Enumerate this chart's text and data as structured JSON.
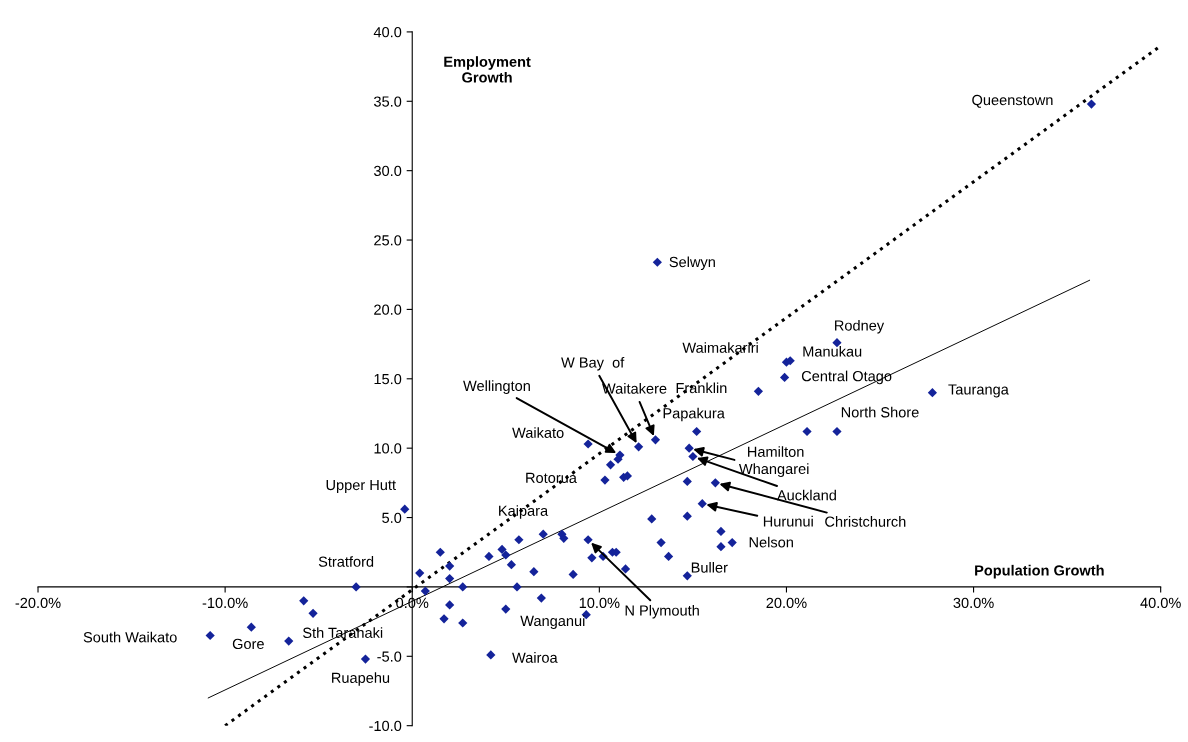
{
  "chart_data": {
    "type": "scatter",
    "xlabel": "Population Growth",
    "ylabel": "Employment Growth",
    "xlim": [
      -20,
      40
    ],
    "ylim": [
      -10,
      40
    ],
    "xticks": [
      {
        "value": -20,
        "label": "-20.0%"
      },
      {
        "value": -10,
        "label": "-10.0%"
      },
      {
        "value": 0,
        "label": "0.0%"
      },
      {
        "value": 10,
        "label": "10.0%"
      },
      {
        "value": 20,
        "label": "20.0%"
      },
      {
        "value": 30,
        "label": "30.0%"
      },
      {
        "value": 40,
        "label": "40.0%"
      }
    ],
    "yticks": [
      {
        "value": -10,
        "label": "-10.0"
      },
      {
        "value": -5,
        "label": "-5.0"
      },
      {
        "value": 0,
        "label": null
      },
      {
        "value": 5,
        "label": "5.0"
      },
      {
        "value": 10,
        "label": "10.0"
      },
      {
        "value": 15,
        "label": "15.0"
      },
      {
        "value": 20,
        "label": "20.0"
      },
      {
        "value": 25,
        "label": "25.0"
      },
      {
        "value": 30,
        "label": "30.0"
      },
      {
        "value": 35,
        "label": "35.0"
      },
      {
        "value": 40,
        "label": "40.0"
      }
    ],
    "marker": "diamond",
    "grid": false,
    "legend": false,
    "series": [
      {
        "color": "#14239a",
        "x": [
          36.3,
          13.1,
          22.7,
          20.0,
          20.2,
          19.9,
          18.5,
          27.8,
          22.7,
          21.1,
          15.2,
          14.8,
          15.0,
          16.2,
          14.7,
          15.5,
          12.8,
          14.7,
          16.5,
          16.5,
          17.1,
          13.3,
          13.7,
          14.7,
          11.4,
          9.4,
          9.6,
          10.2,
          10.7,
          10.9,
          8.6,
          8.0,
          8.1,
          7.0,
          5.7,
          4.8,
          5.0,
          5.3,
          4.1,
          6.5,
          1.5,
          2.0,
          2.0,
          0.4,
          0.7,
          2.7,
          5.6,
          6.9,
          2.0,
          5.0,
          1.7,
          2.7,
          9.3,
          4.2,
          10.3,
          11.3,
          11.5,
          9.4,
          12.1,
          13.0,
          11.1,
          11.0,
          10.6,
          -0.4,
          -3.0,
          -5.8,
          -5.3,
          -8.6,
          -10.8,
          -6.6,
          -2.5
        ],
        "values": [
          34.8,
          23.4,
          17.6,
          16.2,
          16.3,
          15.1,
          14.1,
          14.0,
          11.2,
          11.2,
          11.2,
          10.0,
          9.4,
          7.5,
          7.6,
          6.0,
          4.9,
          5.1,
          4.0,
          2.9,
          3.2,
          3.2,
          2.2,
          0.8,
          1.3,
          3.4,
          2.1,
          2.2,
          2.5,
          2.5,
          0.9,
          3.8,
          3.5,
          3.8,
          3.4,
          2.7,
          2.3,
          1.6,
          2.2,
          1.1,
          2.5,
          1.5,
          0.6,
          1.0,
          -0.3,
          0.0,
          0.0,
          -0.8,
          -1.3,
          -1.6,
          -2.3,
          -2.6,
          -2.0,
          -4.9,
          7.7,
          7.9,
          8.0,
          10.3,
          10.1,
          10.6,
          9.5,
          9.2,
          8.8,
          5.6,
          0.0,
          -1.0,
          -1.9,
          -2.9,
          -3.5,
          -3.9,
          -5.2
        ]
      },
      {
        "type": "line",
        "color": "#000000",
        "line_style": "dotted",
        "marker": "none",
        "x": [
          -10.0,
          39.9
        ],
        "values": [
          -10.0,
          38.9
        ]
      },
      {
        "type": "line",
        "color": "#000000",
        "line_style": "solid",
        "marker": "none",
        "x": [
          -10.9,
          36.2
        ],
        "values": [
          -8.0,
          22.1
        ]
      }
    ],
    "annotations": [
      "Queenstown",
      {
        "text": "Selwyn",
        "x": 13.1,
        "y": 23.4
      },
      {
        "text": "Rodney",
        "x": 22.7,
        "y": 17.6
      },
      "Waimakariri",
      {
        "text": "Manukau",
        "x": 20.2,
        "y": 16.3
      },
      {
        "text": "Central Otago",
        "x": 19.9,
        "y": 15.1
      },
      {
        "text": "Franklin",
        "x": 18.5,
        "y": 14.1
      },
      {
        "text": "Tauranga",
        "x": 27.8,
        "y": 14.0
      },
      {
        "text": "North Shore",
        "x": 22.7,
        "y": 11.2
      },
      {
        "text": "Papakura",
        "x": 15.2,
        "y": 11.2
      },
      "Hamilton",
      {
        "text": "Whangarei",
        "x": 14.8,
        "y": 10.0
      },
      {
        "text": "Auckland",
        "x": 15.0,
        "y": 9.4
      },
      {
        "text": "Christchurch",
        "x": 16.2,
        "y": 7.5
      },
      {
        "text": "Hurunui",
        "x": 15.5,
        "y": 6.0
      },
      {
        "text": "Nelson",
        "x": 17.1,
        "y": 3.2
      },
      {
        "text": "Buller",
        "x": 14.7,
        "y": 0.8
      },
      {
        "text": "N Plymouth",
        "x": 9.4,
        "y": 3.4
      },
      {
        "text": "Wanganui",
        "x": 5.0,
        "y": -1.6
      },
      {
        "text": "Wairoa",
        "x": 4.2,
        "y": -4.9
      },
      {
        "text": "Ruapehu",
        "x": -2.5,
        "y": -5.2
      },
      {
        "text": "Sth Taranaki",
        "x": -6.6,
        "y": -3.9
      },
      {
        "text": "Gore",
        "x": -8.6,
        "y": -2.9
      },
      {
        "text": "South Waikato",
        "x": -10.8,
        "y": -3.5
      },
      {
        "text": "Stratford",
        "x": -3.0,
        "y": 0.0
      },
      {
        "text": "Upper Hutt",
        "x": -0.4,
        "y": 5.6
      },
      "Kaipara",
      {
        "text": "Rotorua",
        "x": 10.3,
        "y": 7.7
      },
      {
        "text": "Waikato",
        "x": 9.4,
        "y": 10.3
      },
      {
        "text": "Wellington",
        "x": 11.1,
        "y": 9.5
      },
      {
        "text": "W Bay  of",
        "x": 12.1,
        "y": 10.1
      },
      {
        "text": "Waitakere",
        "x": 13.0,
        "y": 10.6
      }
    ]
  }
}
